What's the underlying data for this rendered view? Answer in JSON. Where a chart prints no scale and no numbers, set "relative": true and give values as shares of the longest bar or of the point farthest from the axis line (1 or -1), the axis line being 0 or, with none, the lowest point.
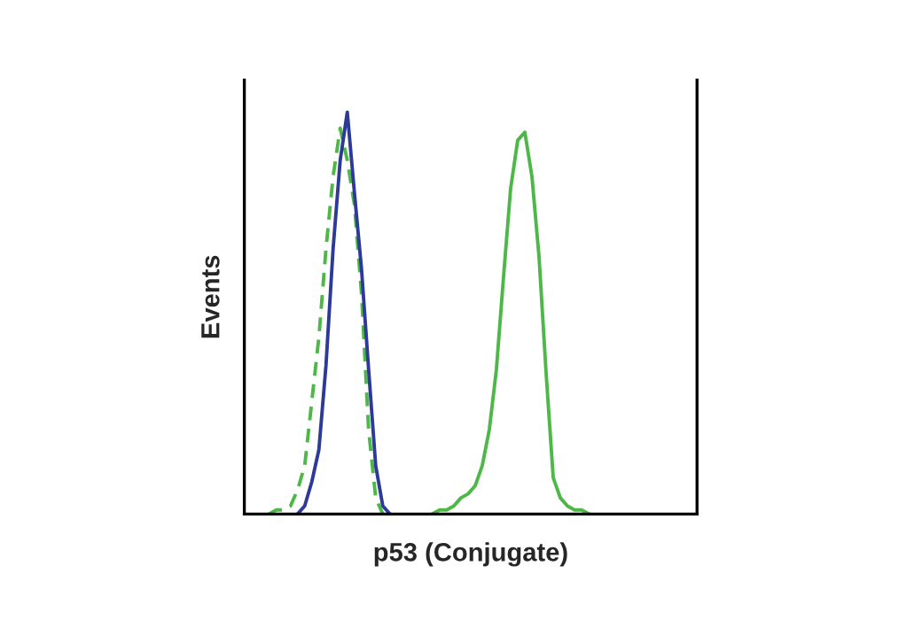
{
  "chart_data": {
    "type": "line",
    "relative": true,
    "xlabel": "p53 (Conjugate)",
    "ylabel": "Events",
    "grid": false,
    "marker": "none",
    "categories": [
      null,
      null,
      null,
      null,
      null,
      null,
      null,
      null,
      null,
      null,
      null,
      null,
      null,
      null,
      null,
      null,
      null,
      null,
      null,
      null,
      null,
      null,
      null,
      null,
      null,
      null,
      null,
      null,
      null,
      null,
      null,
      null,
      null,
      null,
      null,
      null,
      null,
      null,
      null,
      null,
      null,
      null,
      null,
      null,
      null,
      null,
      null,
      null,
      null,
      null,
      null,
      null,
      null,
      null,
      null,
      null,
      null,
      null,
      null,
      null,
      null,
      null,
      null,
      null
    ],
    "series": [
      {
        "color": "#4db848",
        "line_style": "solid",
        "values": [
          null,
          null,
          null,
          null,
          null,
          null,
          null,
          null,
          null,
          null,
          null,
          null,
          null,
          null,
          null,
          null,
          null,
          null,
          null,
          null,
          null,
          null,
          null,
          null,
          null,
          null,
          0,
          0.01,
          0.01,
          0.02,
          0.04,
          0.05,
          0.07,
          0.12,
          0.21,
          0.36,
          0.59,
          0.81,
          0.93,
          0.95,
          0.84,
          0.64,
          0.35,
          0.09,
          0.04,
          0.02,
          0.01,
          0.01,
          0,
          null,
          null,
          null,
          null,
          null,
          null,
          null,
          null,
          null,
          null,
          null,
          null,
          null,
          null,
          null
        ]
      },
      {
        "color": "#4db848",
        "line_style": "dashed",
        "values": [
          null,
          null,
          null,
          0,
          0.01,
          0.01,
          0.02,
          0.06,
          0.12,
          0.28,
          0.44,
          0.66,
          0.84,
          0.96,
          0.88,
          0.77,
          0.55,
          0.21,
          0.04,
          0,
          null,
          null,
          null,
          null,
          null,
          null,
          null,
          null,
          null,
          null,
          null,
          null,
          null,
          null,
          null,
          null,
          null,
          null,
          null,
          null,
          null,
          null,
          null,
          null,
          null,
          null,
          null,
          null,
          null,
          null,
          null,
          null,
          null,
          null,
          null,
          null,
          null,
          null,
          null,
          null,
          null,
          null,
          null,
          null
        ]
      },
      {
        "color": "#2e3a97",
        "line_style": "solid",
        "values": [
          null,
          null,
          null,
          null,
          null,
          null,
          null,
          0,
          0.02,
          0.08,
          0.16,
          0.37,
          0.66,
          0.88,
          1,
          0.8,
          0.61,
          0.36,
          0.12,
          0.02,
          0,
          null,
          null,
          null,
          null,
          null,
          null,
          null,
          null,
          null,
          null,
          null,
          null,
          null,
          null,
          null,
          null,
          null,
          null,
          null,
          null,
          null,
          null,
          null,
          null,
          null,
          null,
          null,
          null,
          null,
          null,
          null,
          null,
          null,
          null,
          null,
          null,
          null,
          null,
          null,
          null,
          null,
          null,
          null
        ]
      }
    ]
  }
}
